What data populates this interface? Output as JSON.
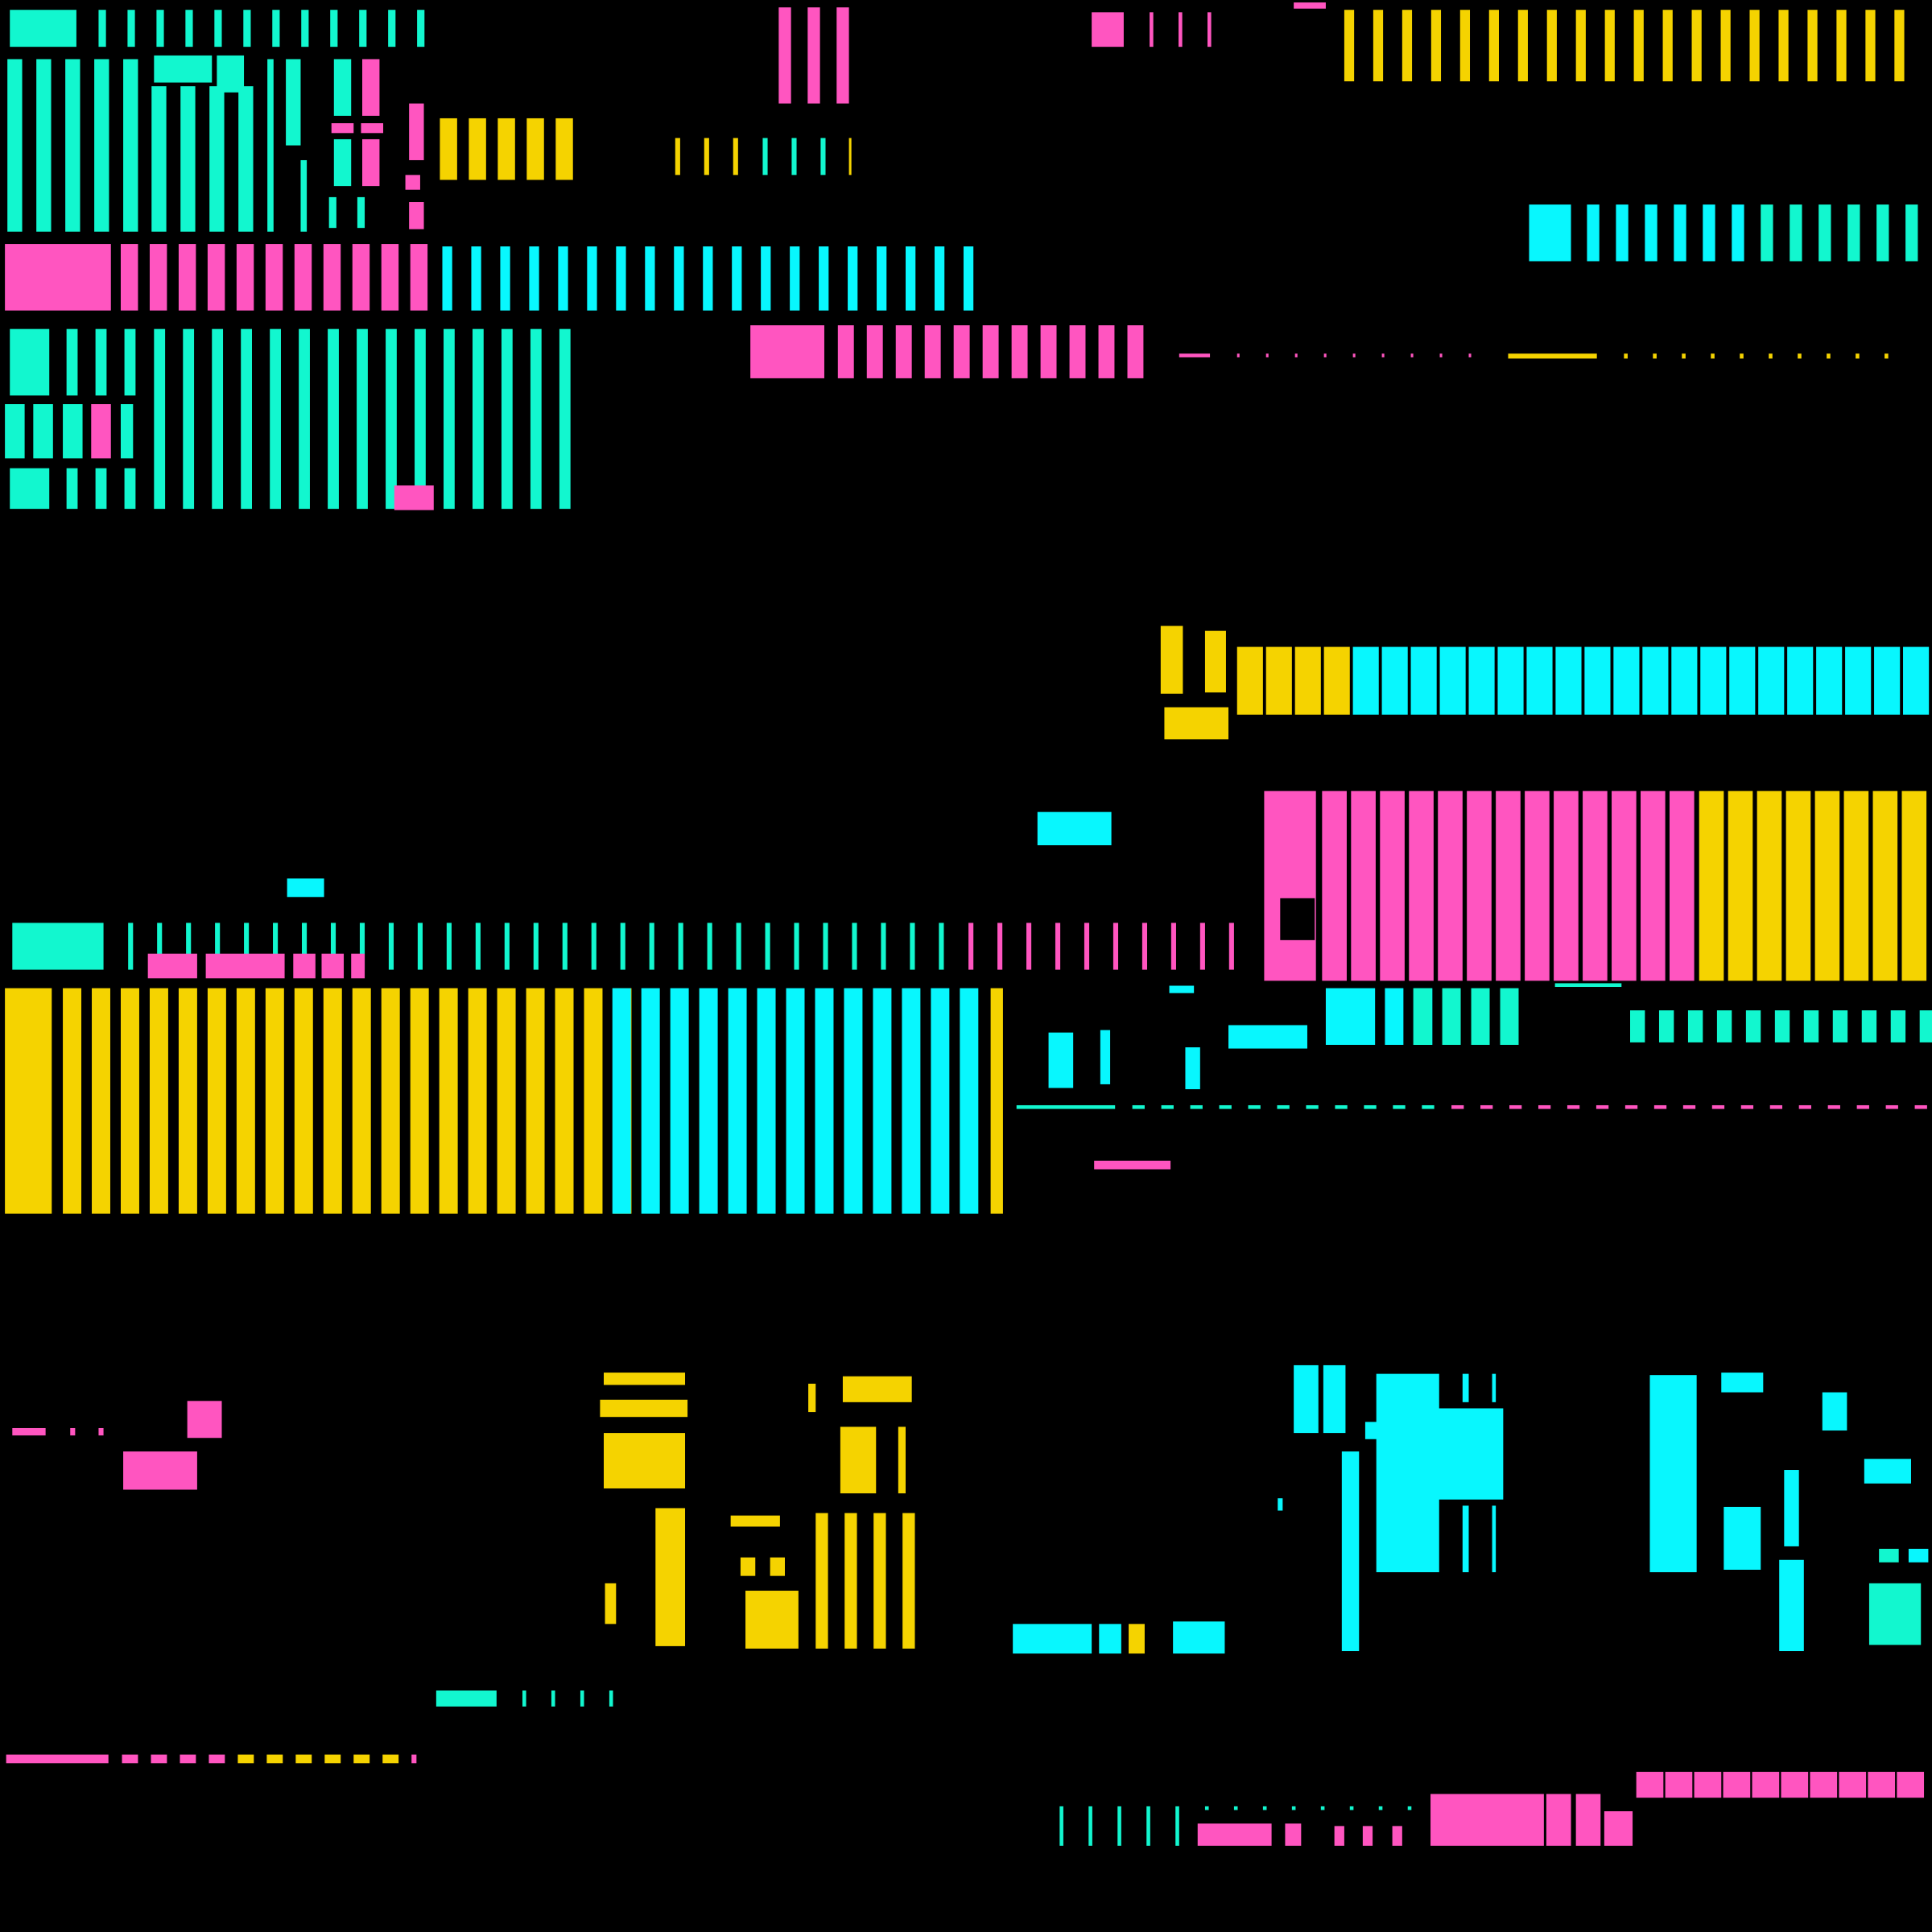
{
  "background_color": "#000000",
  "palette": {
    "teal": "#12F7CF",
    "cyan": "#08F7FE",
    "pink": "#FF55C0",
    "yellow": "#F5D300"
  }
}
